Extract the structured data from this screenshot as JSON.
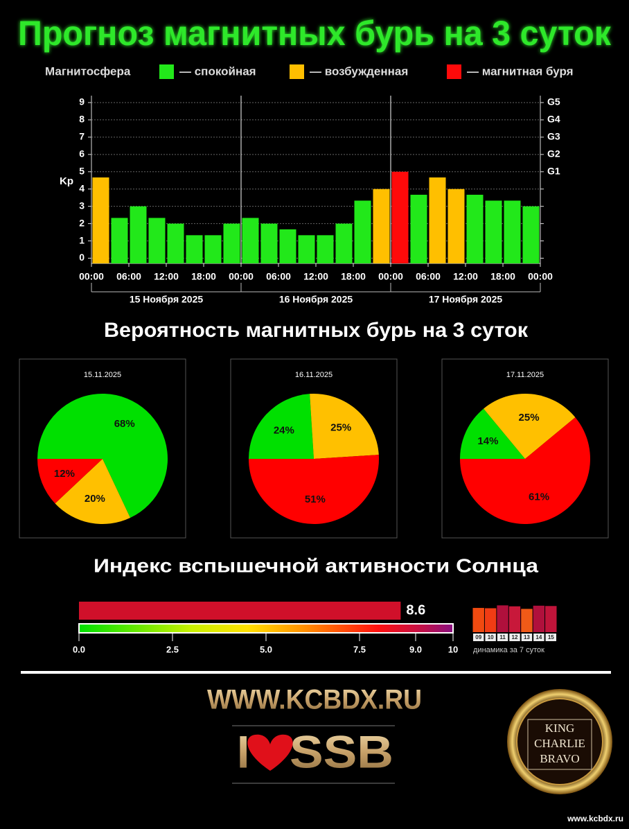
{
  "chart_data": [
    {
      "type": "bar",
      "title": "Прогноз магнитных бурь на 3 суток",
      "legend_title": "Магнитосфера",
      "legend": [
        {
          "name": "— спокойная",
          "color": "#22e81a"
        },
        {
          "name": "— возбужденная",
          "color": "#ffbf00"
        },
        {
          "name": "— магнитная буря",
          "color": "#ff0a0a"
        }
      ],
      "ylabel": "Kp",
      "values": [
        4.67,
        2.33,
        3,
        2.33,
        2,
        1.33,
        1.33,
        2,
        2.33,
        2,
        1.67,
        1.33,
        1.33,
        2,
        3.33,
        4,
        5,
        3.67,
        4.67,
        4,
        3.67,
        3.33,
        3.33,
        3
      ],
      "colors": [
        "#ffbf00",
        "#22e81a",
        "#22e81a",
        "#22e81a",
        "#22e81a",
        "#22e81a",
        "#22e81a",
        "#22e81a",
        "#22e81a",
        "#22e81a",
        "#22e81a",
        "#22e81a",
        "#22e81a",
        "#22e81a",
        "#22e81a",
        "#ffbf00",
        "#ff0a0a",
        "#22e81a",
        "#ffbf00",
        "#ffbf00",
        "#22e81a",
        "#22e81a",
        "#22e81a",
        "#22e81a"
      ],
      "ylim": [
        -0.3,
        9.4
      ],
      "yticks": [
        0,
        1,
        2,
        3,
        4,
        5,
        6,
        7,
        8,
        9
      ],
      "y2lim": [
        -0.3,
        9.4
      ],
      "y2ticks": [
        {
          "value": 5,
          "label": "G1"
        },
        {
          "value": 6,
          "label": "G2"
        },
        {
          "value": 7,
          "label": "G3"
        },
        {
          "value": 8,
          "label": "G4"
        },
        {
          "value": 9,
          "label": "G5"
        }
      ],
      "xlim": [
        0,
        72
      ],
      "xticks": [
        {
          "value": 0,
          "label": "00:00"
        },
        {
          "value": 6,
          "label": "06:00"
        },
        {
          "value": 12,
          "label": "12:00"
        },
        {
          "value": 18,
          "label": "18:00"
        },
        {
          "value": 24,
          "label": "00:00"
        },
        {
          "value": 30,
          "label": "06:00"
        },
        {
          "value": 36,
          "label": "12:00"
        },
        {
          "value": 42,
          "label": "18:00"
        },
        {
          "value": 48,
          "label": "00:00"
        },
        {
          "value": 54,
          "label": "06:00"
        },
        {
          "value": 60,
          "label": "12:00"
        },
        {
          "value": 66,
          "label": "18:00"
        },
        {
          "value": 72,
          "label": "00:00"
        }
      ],
      "day_labels": [
        "15 Ноября 2025",
        "16 Ноября 2025",
        "17 Ноября 2025"
      ],
      "grid": true
    },
    {
      "type": "pie",
      "title": "15.11.2025",
      "values": [
        68,
        20,
        12
      ],
      "value_labels": [
        "68%",
        "20%",
        "12%"
      ],
      "colors": [
        "#00e000",
        "#ffc000",
        "#ff0000"
      ]
    },
    {
      "type": "pie",
      "title": "16.11.2025",
      "values": [
        24,
        25,
        51
      ],
      "value_labels": [
        "24%",
        "25%",
        "51%"
      ],
      "colors": [
        "#00e000",
        "#ffc000",
        "#ff0000"
      ]
    },
    {
      "type": "pie",
      "title": "17.11.2025",
      "values": [
        14,
        25,
        61
      ],
      "value_labels": [
        "14%",
        "25%",
        "61%"
      ],
      "colors": [
        "#00e000",
        "#ffc000",
        "#ff0000"
      ]
    },
    {
      "type": "gauge",
      "title": "Индекс вспышечной активности Солнца",
      "value": 8.6,
      "color": "#d0102a",
      "xlim": [
        0,
        10
      ],
      "xticks": [
        {
          "value": 0,
          "label": "0.0"
        },
        2.5,
        {
          "value": 5,
          "label": "5.0"
        },
        7.5,
        {
          "value": 9,
          "label": "9.0"
        },
        10
      ]
    },
    {
      "type": "bar",
      "xlabel": "динамика за 7 суток",
      "categories": [
        "09",
        "10",
        "11",
        "12",
        "13",
        "14",
        "15"
      ],
      "values": [
        7.6,
        7.5,
        8.4,
        8.1,
        7.3,
        8.3,
        8.2
      ],
      "colors": [
        "#f04a10",
        "#f03c14",
        "#b0103c",
        "#c8183a",
        "#f05a18",
        "#b0103c",
        "#c0143a"
      ],
      "ylim": [
        0,
        10
      ]
    }
  ],
  "pie_section_title": "Вероятность магнитных бурь на 3 суток",
  "footer": {
    "site": "WWW.KCBDX.RU",
    "i": "I",
    "ssb": "SSB",
    "badge": [
      "KING",
      "CHARLIE",
      "BRAVO"
    ],
    "url": "www.kcbdx.ru"
  }
}
